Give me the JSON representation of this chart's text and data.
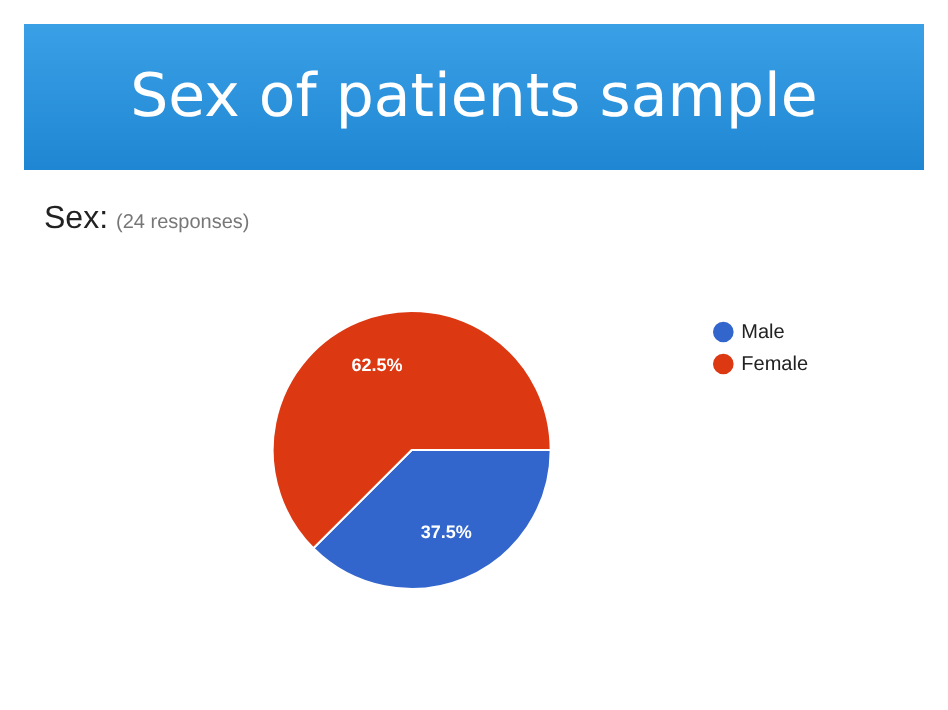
{
  "chart_data": {
    "type": "pie",
    "title": "Sex of patients sample",
    "subtitle": "Sex:",
    "annotations": [
      "(24 responses)"
    ],
    "categories": [
      "Male",
      "Female"
    ],
    "values": [
      37.5,
      62.5
    ],
    "colors": [
      "#3366cc",
      "#dc3912"
    ],
    "value_labels": [
      "37.5%",
      "62.5%"
    ],
    "legend": "right"
  }
}
